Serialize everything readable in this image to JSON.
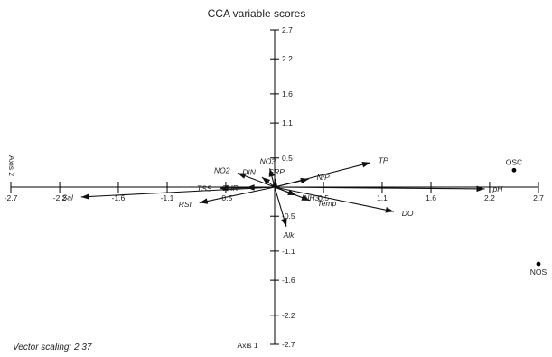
{
  "chart_data": {
    "type": "scatter",
    "title": "CCA variable scores",
    "xlabel": "Axis 1",
    "ylabel": "Axis 2",
    "xlim": [
      -2.7,
      2.7
    ],
    "ylim": [
      -2.7,
      2.7
    ],
    "x_ticks": [
      "-2.7",
      "-2.2",
      "-1.6",
      "-1.1",
      "-0.5",
      "0.5",
      "1.1",
      "1.6",
      "2.2",
      "2.7"
    ],
    "x_tick_values": [
      -2.7,
      -2.2,
      -1.6,
      -1.1,
      -0.5,
      0.5,
      1.1,
      1.6,
      2.2,
      2.7
    ],
    "y_ticks": [
      "2.7",
      "2.2",
      "1.6",
      "1.1",
      "0.5",
      "-0.5",
      "-1.1",
      "-1.6",
      "-2.2",
      "-2.7"
    ],
    "y_tick_values": [
      2.7,
      2.2,
      1.6,
      1.1,
      0.5,
      -0.5,
      -1.1,
      -1.6,
      -2.2,
      -2.7
    ],
    "footnote": "Vector scaling: 2.37",
    "vectors": [
      {
        "name": "TP",
        "x": 0.98,
        "y": 0.42
      },
      {
        "name": "N/P",
        "x": 0.35,
        "y": 0.14
      },
      {
        "name": "pH",
        "x": 2.15,
        "y": -0.03
      },
      {
        "name": "DO",
        "x": 1.22,
        "y": -0.42
      },
      {
        "name": "Temp",
        "x": 0.36,
        "y": -0.23
      },
      {
        "name": "NH3",
        "x": 0.22,
        "y": -0.14
      },
      {
        "name": "Alk",
        "x": 0.12,
        "y": -0.68
      },
      {
        "name": "Sal",
        "x": -1.98,
        "y": -0.17
      },
      {
        "name": "RSI",
        "x": -0.77,
        "y": -0.27
      },
      {
        "name": "TSS",
        "x": -0.56,
        "y": -0.02
      },
      {
        "name": "CHR",
        "x": -0.29,
        "y": -0.01
      },
      {
        "name": "NO2",
        "x": -0.38,
        "y": 0.24
      },
      {
        "name": "DIN",
        "x": -0.13,
        "y": 0.17
      },
      {
        "name": "NO3",
        "x": -0.05,
        "y": 0.32
      },
      {
        "name": "SRP",
        "x": 0.01,
        "y": 0.14
      }
    ],
    "points": [
      {
        "name": "OSC",
        "x": 2.45,
        "y": 0.29
      },
      {
        "name": "NOS",
        "x": 2.7,
        "y": -1.32
      }
    ]
  }
}
